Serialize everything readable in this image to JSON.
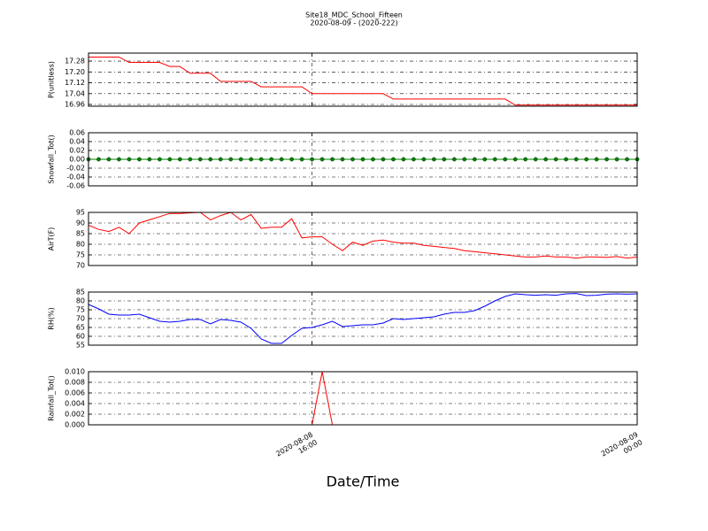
{
  "chart_data": {
    "type": "line",
    "title": "Site18_MDC_School_Fifteen",
    "subtitle": "2020-08-09 - (2020-222)",
    "xlabel": "Date/Time",
    "x": [
      10.5,
      10.75,
      11,
      11.25,
      11.5,
      11.75,
      12,
      12.25,
      12.5,
      12.75,
      13,
      13.25,
      13.5,
      13.75,
      14,
      14.25,
      14.5,
      14.75,
      15,
      15.25,
      15.5,
      15.75,
      16,
      16.25,
      16.5,
      16.75,
      17,
      17.25,
      17.5,
      17.75,
      18,
      18.25,
      18.5,
      18.75,
      19,
      19.25,
      19.5,
      19.75,
      20,
      20.25,
      20.5,
      20.75,
      21,
      21.25,
      21.5,
      21.75,
      22,
      22.25,
      22.5,
      22.75,
      23,
      23.25,
      23.5,
      23.75,
      24
    ],
    "xlim": [
      10.5,
      24
    ],
    "xticks": [
      {
        "value": 16,
        "label": "2020-08-08\n16:00"
      },
      {
        "value": 24,
        "label": "2020-08-09\n00:00"
      }
    ],
    "grid": true,
    "panels": [
      {
        "ylabel": "P(unitless)",
        "ylim": [
          16.947,
          17.339
        ],
        "yticks": [
          16.96,
          17.04,
          17.12,
          {
            "value": 17.2,
            "label": "17.20"
          },
          17.28
        ],
        "series": [
          {
            "color": "#ff0000",
            "values": [
              17.31,
              17.31,
              17.31,
              17.31,
              17.27,
              17.27,
              17.27,
              17.27,
              17.24,
              17.24,
              17.19,
              17.19,
              17.19,
              17.13,
              17.13,
              17.13,
              17.13,
              17.09,
              17.09,
              17.09,
              17.09,
              17.09,
              17.04,
              17.04,
              17.04,
              17.04,
              17.04,
              17.04,
              17.04,
              17.04,
              17.0,
              17.0,
              17.0,
              17.0,
              17.0,
              17.0,
              17.0,
              17.0,
              17.0,
              17.0,
              17.0,
              17.0,
              16.955,
              16.955,
              16.955,
              16.955,
              16.955,
              16.955,
              16.955,
              16.955,
              16.955,
              16.955,
              16.955,
              16.955,
              16.955
            ]
          }
        ]
      },
      {
        "ylabel": "Snowfall_Tot()",
        "ylim": [
          -0.06,
          0.06
        ],
        "yticks": [
          -0.06,
          -0.04,
          -0.02,
          {
            "value": 0,
            "label": "0.00"
          },
          0.02,
          0.04,
          0.06
        ],
        "series": [
          {
            "color": "#008000",
            "marker": "circle",
            "values": [
              0,
              0,
              0,
              0,
              0,
              0,
              0,
              0,
              0,
              0,
              0,
              0,
              0,
              0,
              0,
              0,
              0,
              0,
              0,
              0,
              0,
              0,
              0,
              0,
              0,
              0,
              0,
              0,
              0,
              0,
              0,
              0,
              0,
              0,
              0,
              0,
              0,
              0,
              0,
              0,
              0,
              0,
              0,
              0,
              0,
              0,
              0,
              0,
              0,
              0,
              0,
              0,
              0,
              0,
              0
            ]
          }
        ]
      },
      {
        "ylabel": "AirT(F)",
        "ylim": [
          70,
          95
        ],
        "yticks": [
          70,
          75,
          80,
          85,
          90,
          95
        ],
        "series": [
          {
            "color": "#ff0000",
            "values": [
              89,
              87,
              86,
              88,
              85,
              90,
              91.5,
              93,
              94.5,
              94.5,
              94.8,
              95,
              91.5,
              93.5,
              95,
              91.5,
              94,
              87.5,
              88,
              88,
              92,
              83,
              83.5,
              83.5,
              80,
              77,
              81,
              79.5,
              81.5,
              82,
              81,
              80.5,
              80.5,
              79.5,
              79,
              78.5,
              78,
              77,
              76.5,
              76,
              75.5,
              75,
              74.5,
              74,
              74,
              74.5,
              74,
              74,
              73.5,
              74,
              74,
              73.8,
              74.2,
              73.5,
              74
            ]
          }
        ]
      },
      {
        "ylabel": "RH(%)",
        "ylim": [
          55,
          85
        ],
        "yticks": [
          55,
          60,
          65,
          70,
          75,
          80,
          85
        ],
        "series": [
          {
            "color": "#0000ff",
            "values": [
              78,
              75.5,
              72.5,
              72,
              72,
              72.5,
              70.5,
              68.5,
              68,
              68.5,
              69.5,
              69.5,
              67,
              69.5,
              69,
              68,
              64.5,
              58.5,
              56,
              56,
              60.5,
              64.5,
              65,
              66.5,
              68.5,
              65.5,
              66,
              66.5,
              66.5,
              67.5,
              70,
              69.5,
              70,
              70.5,
              71,
              72.5,
              73.5,
              73.5,
              74.5,
              77,
              80,
              82.5,
              84,
              83.5,
              83.2,
              83.5,
              83.2,
              84,
              84.2,
              83,
              83.2,
              83.8,
              84,
              83.8,
              84
            ]
          }
        ]
      },
      {
        "ylabel": "Rainfall_Tot()",
        "ylim": [
          0,
          0.01
        ],
        "yticks": [
          {
            "value": 0,
            "label": "0.000"
          },
          0.002,
          0.004,
          0.006,
          0.008,
          {
            "value": 0.01,
            "label": "0.010"
          }
        ],
        "series": [
          {
            "color": "#ff0000",
            "values": [
              0,
              0,
              0,
              0,
              0,
              0,
              0,
              0,
              0,
              0,
              0,
              0,
              0,
              0,
              0,
              0,
              0,
              0,
              0,
              0,
              0,
              0,
              0,
              0.01,
              0,
              0,
              0,
              0,
              0,
              0,
              0,
              0,
              0,
              0,
              0,
              0,
              0,
              0,
              0,
              0,
              0,
              0,
              0,
              0,
              0,
              0,
              0,
              0,
              0,
              0,
              0,
              0,
              0,
              0,
              0
            ]
          }
        ]
      }
    ]
  }
}
